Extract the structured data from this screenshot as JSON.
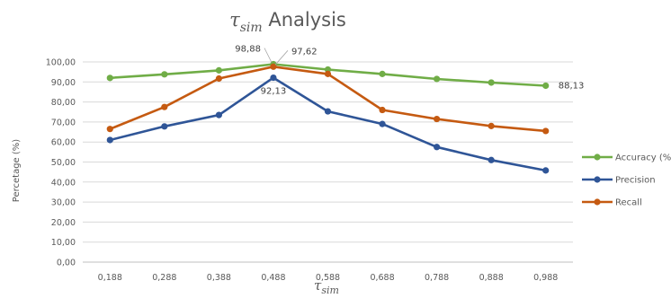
{
  "chart_data": {
    "type": "line",
    "title": {
      "symbol": "τ",
      "subscript": "sim",
      "text": " Analysis"
    },
    "xlabel": {
      "symbol": "τ",
      "subscript": "sim"
    },
    "ylabel": "Percetage (%)",
    "categories": [
      "0,188",
      "0,288",
      "0,388",
      "0,488",
      "0,588",
      "0,688",
      "0,788",
      "0,888",
      "0,988"
    ],
    "ylim": [
      0,
      100
    ],
    "yticks": [
      "0,00",
      "10,00",
      "20,00",
      "30,00",
      "40,00",
      "50,00",
      "60,00",
      "70,00",
      "80,00",
      "90,00",
      "100,00"
    ],
    "grid": true,
    "legend_position": "right",
    "series": [
      {
        "name": "Accuracy (%)",
        "color": "#70ad47",
        "values": [
          92.0,
          93.8,
          95.8,
          98.88,
          96.2,
          94.0,
          91.5,
          89.7,
          88.13
        ]
      },
      {
        "name": "Precision",
        "color": "#2f5597",
        "values": [
          61.0,
          67.8,
          73.5,
          92.13,
          75.3,
          69.0,
          57.5,
          51.0,
          45.8
        ]
      },
      {
        "name": "Recall",
        "color": "#c55a11",
        "values": [
          66.5,
          77.5,
          91.7,
          97.62,
          94.0,
          76.0,
          71.5,
          68.0,
          65.5
        ]
      }
    ],
    "annotations": [
      {
        "text": "98,88",
        "series": 0,
        "index": 3
      },
      {
        "text": "97,62",
        "series": 2,
        "index": 3
      },
      {
        "text": "92,13",
        "series": 1,
        "index": 3
      },
      {
        "text": "88,13",
        "series": 0,
        "index": 8
      }
    ]
  }
}
